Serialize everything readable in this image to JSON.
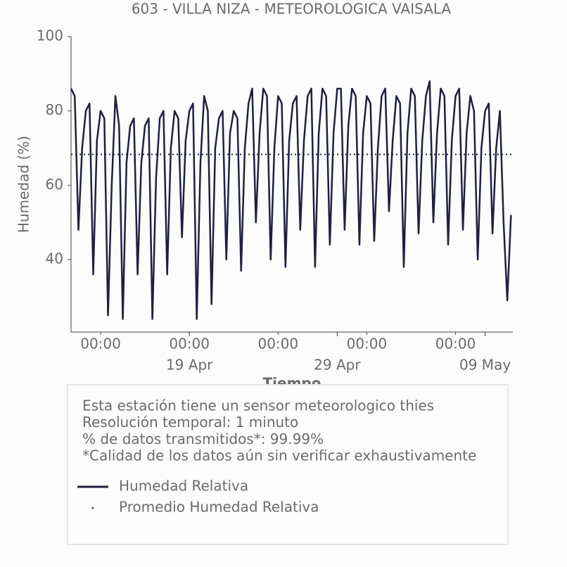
{
  "chart_data": {
    "type": "line",
    "title": "603 - VILLA NIZA - METEOROLOGICA VAISALA",
    "y_label": "Humedad (%)",
    "x_label": "Tiempo",
    "xlim": [
      "11 Apr 00:00",
      "10 May 21:00"
    ],
    "ylim": [
      20.5,
      100
    ],
    "yticks": [
      40,
      60,
      80,
      100
    ],
    "xticks": [
      {
        "value": "13 Apr 00:00",
        "label": "00:00"
      },
      {
        "value": "19 Apr 00:00",
        "label": "00:00"
      },
      {
        "value": "25 Apr 00:00",
        "label": "00:00"
      },
      {
        "value": "01 May 00:00",
        "label": "00:00"
      },
      {
        "value": "07 May 00:00",
        "label": "00:00"
      }
    ],
    "xticks_major": [
      {
        "value": "19 Apr 00:00",
        "label": "19 Apr"
      },
      {
        "value": "29 Apr 00:00",
        "label": "29 Apr"
      },
      {
        "value": "09 May 00:00",
        "label": "09 May"
      }
    ],
    "x": [
      "11 Apr 00:00",
      "11 Apr 06:00",
      "11 Apr 12:00",
      "11 Apr 18:00",
      "12 Apr 00:00",
      "12 Apr 06:00",
      "12 Apr 12:00",
      "12 Apr 18:00",
      "13 Apr 00:00",
      "13 Apr 06:00",
      "13 Apr 12:00",
      "13 Apr 18:00",
      "14 Apr 00:00",
      "14 Apr 06:00",
      "14 Apr 12:00",
      "14 Apr 18:00",
      "15 Apr 00:00",
      "15 Apr 06:00",
      "15 Apr 12:00",
      "15 Apr 18:00",
      "16 Apr 00:00",
      "16 Apr 06:00",
      "16 Apr 12:00",
      "16 Apr 18:00",
      "17 Apr 00:00",
      "17 Apr 06:00",
      "17 Apr 12:00",
      "17 Apr 18:00",
      "18 Apr 00:00",
      "18 Apr 06:00",
      "18 Apr 12:00",
      "18 Apr 18:00",
      "19 Apr 00:00",
      "19 Apr 06:00",
      "19 Apr 12:00",
      "19 Apr 18:00",
      "20 Apr 00:00",
      "20 Apr 06:00",
      "20 Apr 12:00",
      "20 Apr 18:00",
      "21 Apr 00:00",
      "21 Apr 06:00",
      "21 Apr 12:00",
      "21 Apr 18:00",
      "22 Apr 00:00",
      "22 Apr 06:00",
      "22 Apr 12:00",
      "22 Apr 18:00",
      "23 Apr 00:00",
      "23 Apr 06:00",
      "23 Apr 12:00",
      "23 Apr 18:00",
      "24 Apr 00:00",
      "24 Apr 06:00",
      "24 Apr 12:00",
      "24 Apr 18:00",
      "25 Apr 00:00",
      "25 Apr 06:00",
      "25 Apr 12:00",
      "25 Apr 18:00",
      "26 Apr 00:00",
      "26 Apr 06:00",
      "26 Apr 12:00",
      "26 Apr 18:00",
      "27 Apr 00:00",
      "27 Apr 06:00",
      "27 Apr 12:00",
      "27 Apr 18:00",
      "28 Apr 00:00",
      "28 Apr 06:00",
      "28 Apr 12:00",
      "28 Apr 18:00",
      "29 Apr 00:00",
      "29 Apr 06:00",
      "29 Apr 12:00",
      "29 Apr 18:00",
      "30 Apr 00:00",
      "30 Apr 06:00",
      "30 Apr 12:00",
      "30 Apr 18:00",
      "01 May 00:00",
      "01 May 06:00",
      "01 May 12:00",
      "01 May 18:00",
      "02 May 00:00",
      "02 May 06:00",
      "02 May 12:00",
      "02 May 18:00",
      "03 May 00:00",
      "03 May 06:00",
      "03 May 12:00",
      "03 May 18:00",
      "04 May 00:00",
      "04 May 06:00",
      "04 May 12:00",
      "04 May 18:00",
      "05 May 00:00",
      "05 May 06:00",
      "05 May 12:00",
      "05 May 18:00",
      "06 May 00:00",
      "06 May 06:00",
      "06 May 12:00",
      "06 May 18:00",
      "07 May 00:00",
      "07 May 06:00",
      "07 May 12:00",
      "07 May 18:00",
      "08 May 00:00",
      "08 May 06:00",
      "08 May 12:00",
      "08 May 18:00",
      "09 May 00:00",
      "09 May 06:00",
      "09 May 12:00",
      "09 May 18:00",
      "10 May 00:00",
      "10 May 06:00",
      "10 May 12:00",
      "10 May 18:00"
    ],
    "series": [
      {
        "name": "Humedad Relativa",
        "color": "#1f2041",
        "values": [
          86,
          84,
          48,
          70,
          80,
          82,
          36,
          72,
          80,
          78,
          25,
          60,
          84,
          76,
          24,
          66,
          76,
          78,
          36,
          66,
          76,
          78,
          24,
          62,
          78,
          80,
          36,
          70,
          80,
          78,
          46,
          72,
          80,
          82,
          24,
          66,
          84,
          80,
          28,
          70,
          78,
          80,
          40,
          74,
          80,
          78,
          37,
          70,
          82,
          86,
          50,
          74,
          86,
          84,
          40,
          70,
          84,
          82,
          38,
          72,
          82,
          84,
          48,
          72,
          84,
          86,
          38,
          74,
          86,
          84,
          44,
          74,
          86,
          86,
          48,
          76,
          86,
          84,
          44,
          74,
          84,
          82,
          45,
          70,
          84,
          86,
          53,
          72,
          84,
          82,
          38,
          74,
          86,
          84,
          47,
          72,
          84,
          88,
          50,
          74,
          86,
          84,
          44,
          72,
          84,
          86,
          48,
          74,
          84,
          80,
          40,
          70,
          80,
          82,
          47,
          70,
          80,
          50,
          29,
          52
        ]
      }
    ],
    "reference_lines": [
      {
        "name": "Promedio Humedad Relativa",
        "color": "#1f2041",
        "value": 68.3
      }
    ],
    "notes": [
      "Esta estación tiene un sensor meteorologico thies",
      "Resolución temporal: 1 minuto",
      "% de datos transmitidos*: 99.99%",
      "*Calidad de los datos aún sin verificar exhaustivamente"
    ]
  }
}
